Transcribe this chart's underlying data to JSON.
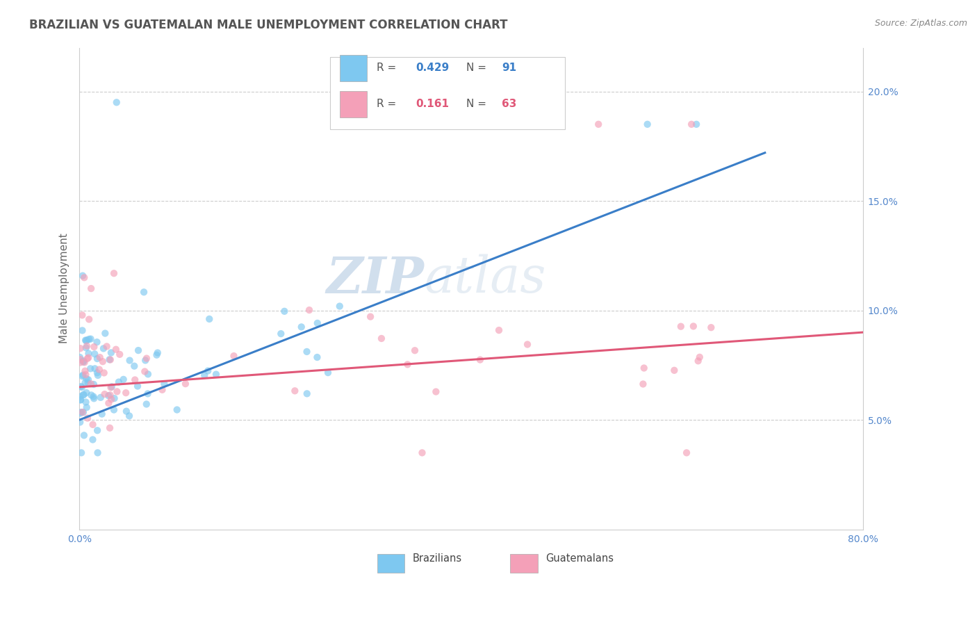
{
  "title": "BRAZILIAN VS GUATEMALAN MALE UNEMPLOYMENT CORRELATION CHART",
  "source_text": "Source: ZipAtlas.com",
  "ylabel": "Male Unemployment",
  "watermark_zip": "ZIP",
  "watermark_atlas": "atlas",
  "xlim": [
    0.0,
    80.0
  ],
  "ylim": [
    0.0,
    22.0
  ],
  "xticks": [
    0.0,
    10.0,
    20.0,
    30.0,
    40.0,
    50.0,
    60.0,
    70.0,
    80.0
  ],
  "yticks": [
    5.0,
    10.0,
    15.0,
    20.0
  ],
  "ytick_labels": [
    "5.0%",
    "10.0%",
    "15.0%",
    "20.0%"
  ],
  "xtick_labels": [
    "0.0%",
    "",
    "",
    "",
    "",
    "",
    "",
    "",
    "80.0%"
  ],
  "brazil_color": "#7EC8F0",
  "guatemala_color": "#F4A0B8",
  "brazil_line_color": "#3A7EC8",
  "guatemala_line_color": "#E05878",
  "brazil_R": "0.429",
  "brazil_N": "91",
  "guatemala_R": "0.161",
  "guatemala_N": "63",
  "brazil_regline_x": [
    0.0,
    70.0
  ],
  "brazil_regline_y": [
    5.0,
    17.2
  ],
  "guatemala_regline_x": [
    0.0,
    80.0
  ],
  "guatemala_regline_y": [
    6.5,
    9.0
  ],
  "grid_color": "#CCCCCC",
  "background_color": "#FFFFFF",
  "title_color": "#555555",
  "title_fontsize": 12,
  "axis_label_color": "#666666",
  "tick_label_color": "#5588CC",
  "source_color": "#888888",
  "watermark_zip_color": "#9BB8D8",
  "watermark_atlas_color": "#B8CDE0",
  "watermark_fontsize": 52,
  "scatter_size": 55,
  "scatter_alpha": 0.65
}
